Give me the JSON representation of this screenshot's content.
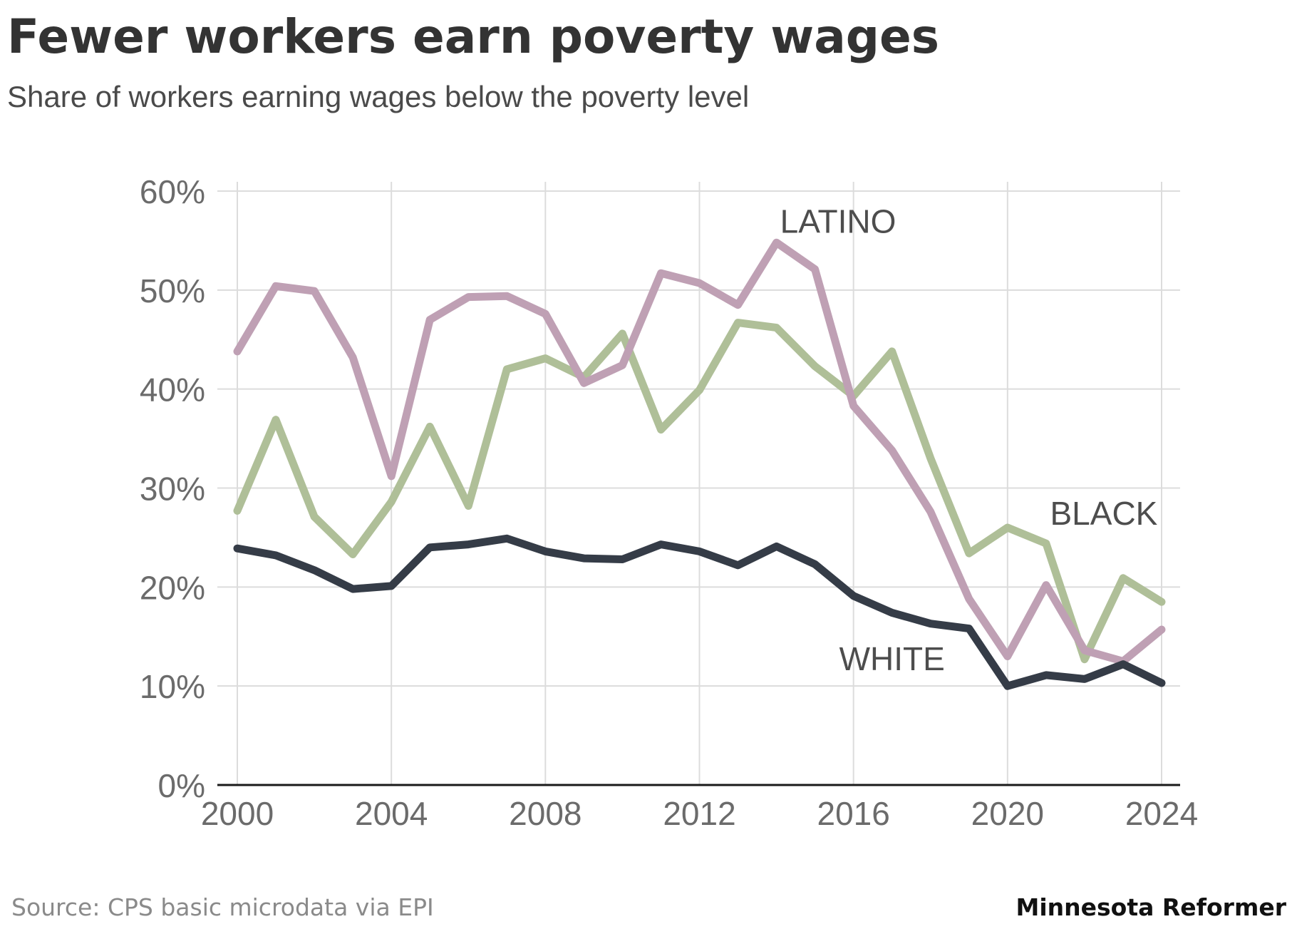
{
  "chart_data": {
    "type": "line",
    "title": "Fewer workers earn poverty wages",
    "subtitle": "Share of workers earning wages below the poverty level",
    "xlabel": "",
    "ylabel": "",
    "x": [
      2000,
      2001,
      2002,
      2003,
      2004,
      2005,
      2006,
      2007,
      2008,
      2009,
      2010,
      2011,
      2012,
      2013,
      2014,
      2015,
      2016,
      2017,
      2018,
      2019,
      2020,
      2021,
      2022,
      2023,
      2024
    ],
    "xlim": [
      2000,
      2024
    ],
    "ylim": [
      0,
      60
    ],
    "x_ticks": [
      2000,
      2004,
      2008,
      2012,
      2016,
      2020,
      2024
    ],
    "x_tick_labels": [
      "2000",
      "2004",
      "2008",
      "2012",
      "2016",
      "2020",
      "2024"
    ],
    "y_ticks": [
      0,
      10,
      20,
      30,
      40,
      50,
      60
    ],
    "y_tick_labels": [
      "0%",
      "10%",
      "20%",
      "30%",
      "40%",
      "50%",
      "60%"
    ],
    "grid": true,
    "series": [
      {
        "name": "Black",
        "label": "BLACK",
        "color": "#afbf98",
        "values": [
          27.7,
          36.9,
          27.1,
          23.3,
          28.6,
          36.2,
          28.2,
          42.0,
          43.1,
          41.2,
          45.6,
          35.9,
          39.9,
          46.7,
          46.2,
          42.3,
          39.3,
          43.8,
          33.0,
          23.4,
          26.0,
          24.4,
          12.7,
          20.9,
          18.5
        ]
      },
      {
        "name": "Latino",
        "label": "LATINO",
        "color": "#bfa0b4",
        "values": [
          43.8,
          50.4,
          49.9,
          43.2,
          31.2,
          47.0,
          49.3,
          49.4,
          47.6,
          40.6,
          42.4,
          51.7,
          50.7,
          48.5,
          54.8,
          52.1,
          38.3,
          33.8,
          27.6,
          18.8,
          13.0,
          20.2,
          13.6,
          12.5,
          15.7
        ]
      },
      {
        "name": "White",
        "label": "WHITE",
        "color": "#353c47",
        "values": [
          23.9,
          23.2,
          21.7,
          19.8,
          20.1,
          24.0,
          24.3,
          24.9,
          23.6,
          22.9,
          22.8,
          24.3,
          23.6,
          22.2,
          24.1,
          22.3,
          19.1,
          17.4,
          16.3,
          15.8,
          10.0,
          11.1,
          10.7,
          12.2,
          10.3
        ]
      }
    ]
  },
  "footer": {
    "source": "Source: CPS basic microdata via EPI",
    "brand": "Minnesota Reformer"
  }
}
